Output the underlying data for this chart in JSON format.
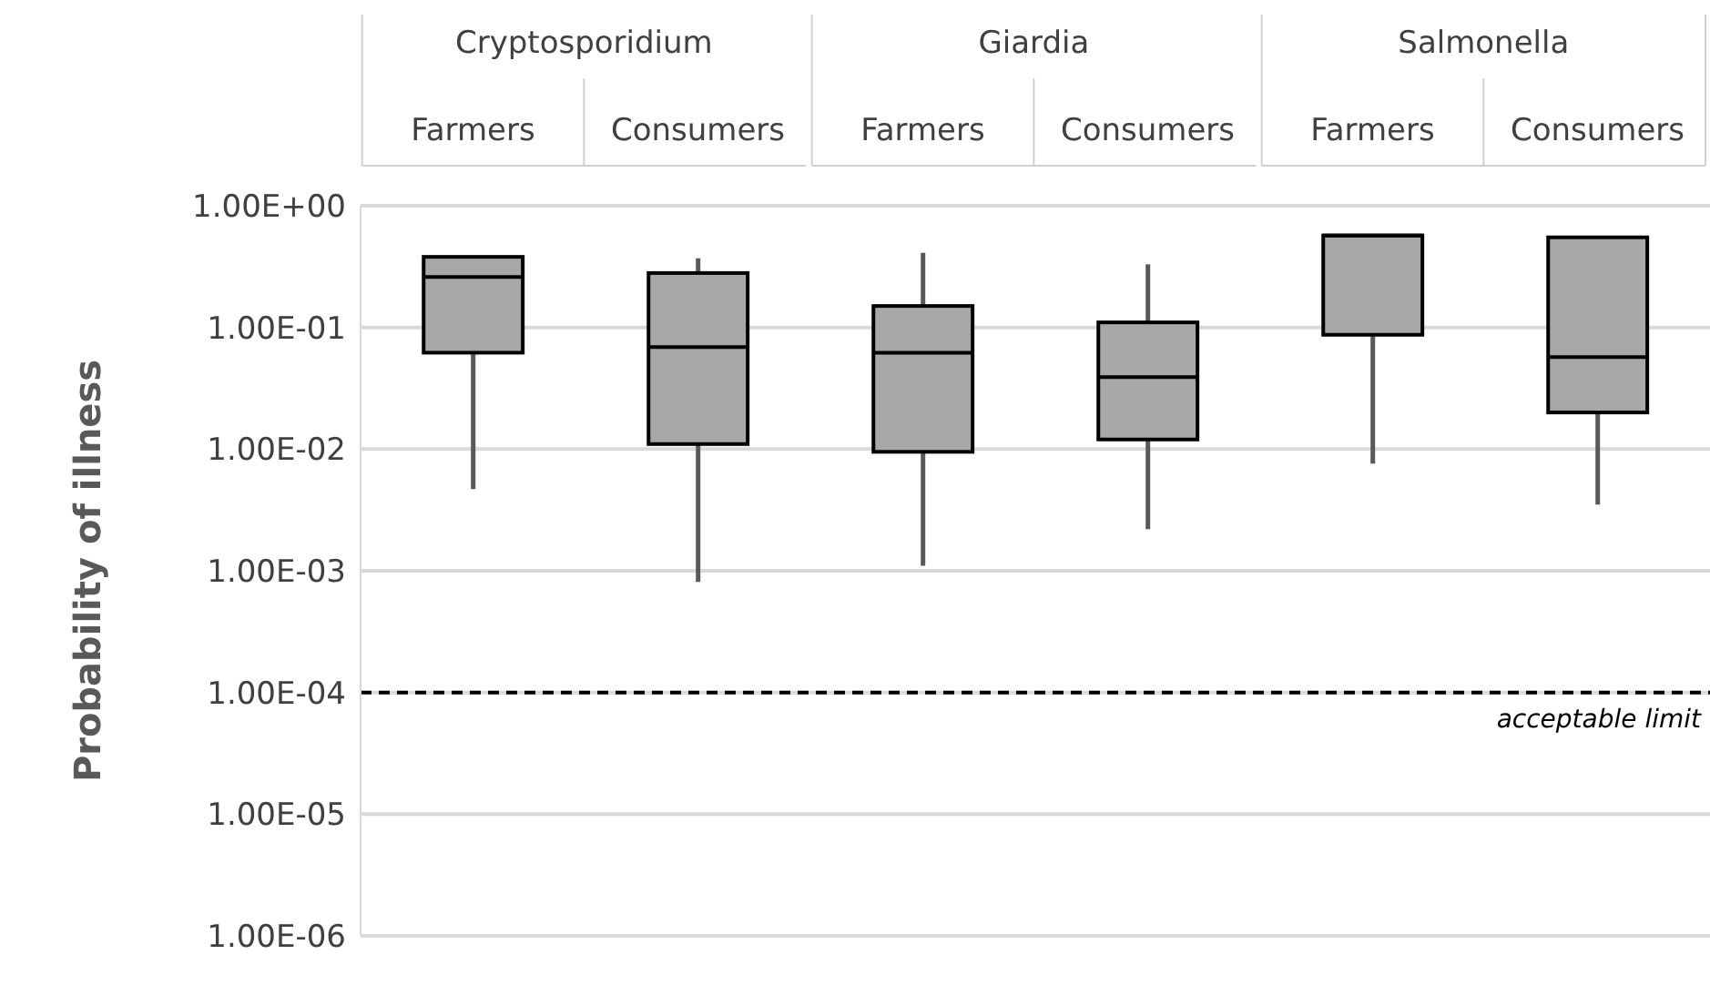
{
  "chart_data": {
    "type": "box",
    "ylabel": "Probability of illness",
    "categories": [
      "Farmers",
      "Consumers",
      "Farmers",
      "Consumers",
      "Farmers",
      "Consumers"
    ],
    "annotations": [
      "Cryptosporidium",
      "Giardia",
      "Salmonella"
    ],
    "boxes": [
      {
        "low": 0.0047,
        "q1": 0.062,
        "median": 0.26,
        "q3": 0.38,
        "high": 0.38
      },
      {
        "low": 0.00081,
        "q1": 0.011,
        "median": 0.069,
        "q3": 0.28,
        "high": 0.37
      },
      {
        "low": 0.0011,
        "q1": 0.0095,
        "median": 0.062,
        "q3": 0.15,
        "high": 0.41
      },
      {
        "low": 0.0022,
        "q1": 0.012,
        "median": 0.039,
        "q3": 0.11,
        "high": 0.33
      },
      {
        "low": 0.0076,
        "q1": 0.087,
        "median": 0.57,
        "q3": 0.57,
        "high": 0.57
      },
      {
        "low": 0.0035,
        "q1": 0.02,
        "median": 0.057,
        "q3": 0.55,
        "high": 0.55
      }
    ],
    "color": "#a8a8a8",
    "log": true,
    "ylim": [
      1e-06,
      1
    ],
    "yticks": [
      {
        "value": 1,
        "label": "1.00E+00"
      },
      {
        "value": 0.1,
        "label": "1.00E-01"
      },
      {
        "value": 0.01,
        "label": "1.00E-02"
      },
      {
        "value": 0.001,
        "label": "1.00E-03"
      },
      {
        "value": 0.0001,
        "label": "1.00E-04"
      },
      {
        "value": 1e-05,
        "label": "1.00E-05"
      },
      {
        "value": 1e-06,
        "label": "1.00E-06"
      }
    ],
    "grid": "y",
    "ref_lines": [
      {
        "axis": "y",
        "value": 0.0001,
        "label": "acceptable limit",
        "color": "#000000",
        "line_style": "dashed"
      }
    ]
  }
}
